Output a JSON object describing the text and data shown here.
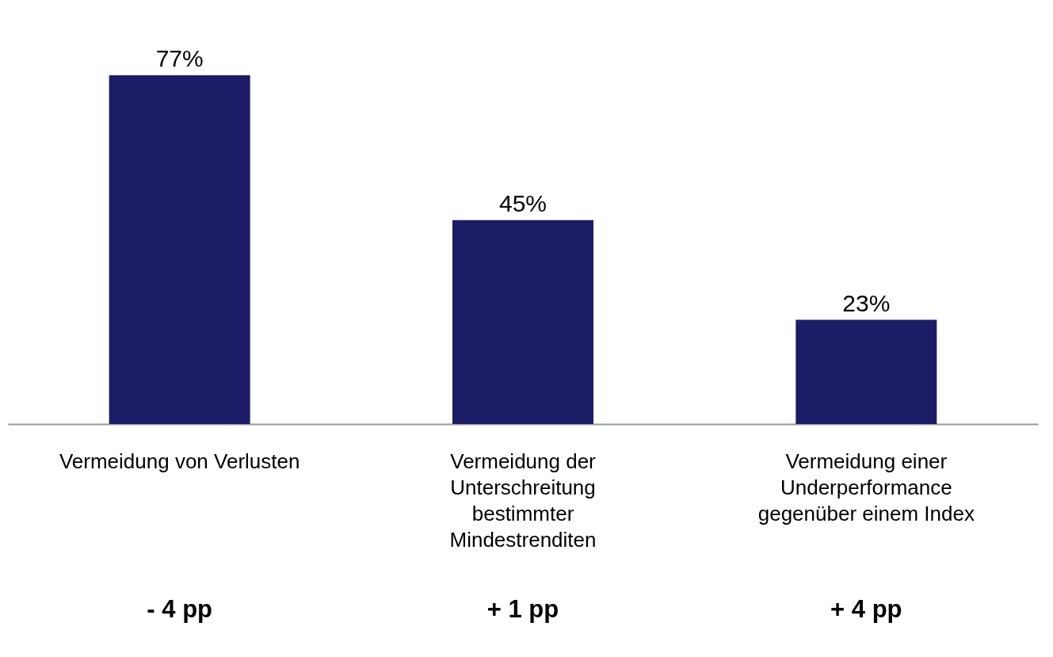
{
  "chart_data": {
    "type": "bar",
    "categories": [
      "Vermeidung von Verlusten",
      "Vermeidung der\nUnterschreitung\nbestimmter\nMindestrenditen",
      "Vermeidung einer\nUnderperformance\ngegenüber einem Index"
    ],
    "values": [
      77,
      45,
      23
    ],
    "value_labels": [
      "77%",
      "45%",
      "23%"
    ],
    "color": "#1c1c66",
    "annotations": [
      "-  4 pp",
      "+ 1 pp",
      "+ 4 pp"
    ],
    "grid": false
  }
}
